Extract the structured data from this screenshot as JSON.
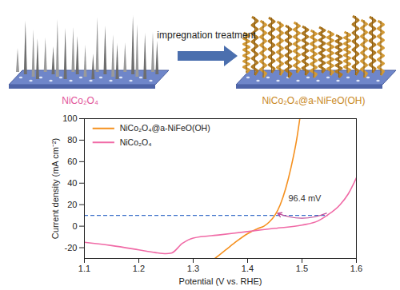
{
  "diagram": {
    "left_label": "NiCo₂O₄",
    "left_label_color": "#e2559a",
    "arrow_label": "impregnation treatment",
    "right_label": "NiCo₂O₄@a-NiFeO(OH)",
    "right_label_color": "#c9891f"
  },
  "chart_data": {
    "type": "line",
    "x_label": "Potential (V vs. RHE)",
    "y_label": "Current density (mA cm⁻²)",
    "xlim": [
      1.1,
      1.6
    ],
    "xticks": [
      1.1,
      1.2,
      1.3,
      1.4,
      1.5,
      1.6
    ],
    "ylim": [
      -30,
      100
    ],
    "yticks": [
      -20,
      0,
      20,
      40,
      60,
      80,
      100
    ],
    "grid": false,
    "legend": "upper left",
    "series": [
      {
        "name": "NiCo₂O₄@a-NiFeO(OH)",
        "color": "#f5901e",
        "x": [
          1.34,
          1.36,
          1.38,
          1.4,
          1.42,
          1.43,
          1.44,
          1.45,
          1.46,
          1.47,
          1.48,
          1.49,
          1.496
        ],
        "values": [
          -30,
          -22,
          -14,
          -7,
          -2,
          0,
          4,
          10,
          20,
          35,
          55,
          80,
          100
        ]
      },
      {
        "name": "NiCo₂O₄",
        "color": "#f06aa6",
        "x": [
          1.1,
          1.15,
          1.2,
          1.23,
          1.25,
          1.26,
          1.28,
          1.3,
          1.35,
          1.4,
          1.45,
          1.5,
          1.53,
          1.546,
          1.57,
          1.585,
          1.6
        ],
        "values": [
          -15,
          -18,
          -22,
          -24.5,
          -25.5,
          -25,
          -16,
          -11,
          -8,
          -5,
          -2,
          1,
          5,
          10,
          20,
          30,
          45
        ]
      }
    ],
    "reference_line": {
      "y": 10,
      "x_end": 1.548,
      "color": "#3b6fc9",
      "line_style": "dashed"
    },
    "annotations": [
      {
        "text": "96.4 mV",
        "x": 1.505,
        "y": 26,
        "color": "#333333",
        "arrow_from": [
          1.545,
          12
        ],
        "arrow_to": [
          1.455,
          12
        ],
        "arrow_color": "#c0509a"
      }
    ]
  }
}
